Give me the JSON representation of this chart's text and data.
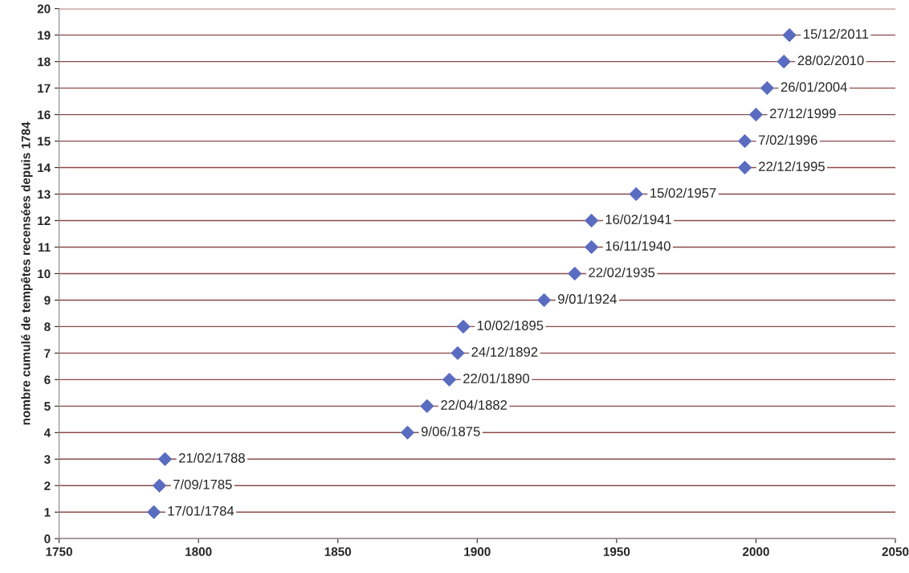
{
  "chart_data": {
    "type": "scatter",
    "ylabel": "nombre cumulé de tempêtes recensées depuis 1784",
    "x": [
      1784,
      1786,
      1788,
      1875,
      1882,
      1890,
      1893,
      1895,
      1924,
      1935,
      1941,
      1941,
      1957,
      1996,
      1996,
      2000,
      2004,
      2010,
      2012
    ],
    "values": [
      1,
      2,
      3,
      4,
      5,
      6,
      7,
      8,
      9,
      10,
      11,
      12,
      13,
      14,
      15,
      16,
      17,
      18,
      19
    ],
    "value_labels": [
      "17/01/1784",
      "7/09/1785",
      "21/02/1788",
      "9/06/1875",
      "22/04/1882",
      "22/01/1890",
      "24/12/1892",
      "10/02/1895",
      "9/01/1924",
      "22/02/1935",
      "16/11/1940",
      "16/02/1941",
      "15/02/1957",
      "22/12/1995",
      "7/02/1996",
      "27/12/1999",
      "26/01/2004",
      "28/02/2010",
      "15/12/2011"
    ],
    "color": "#5a6cc0",
    "marker": "diamond",
    "xlim": [
      1750,
      2050
    ],
    "xticks": [
      1750,
      1800,
      1850,
      1900,
      1950,
      2000,
      2050
    ],
    "ylim": [
      0,
      20
    ],
    "yticks": [
      0,
      1,
      2,
      3,
      4,
      5,
      6,
      7,
      8,
      9,
      10,
      11,
      12,
      13,
      14,
      15,
      16,
      17,
      18,
      19,
      20
    ],
    "grid": "y"
  }
}
